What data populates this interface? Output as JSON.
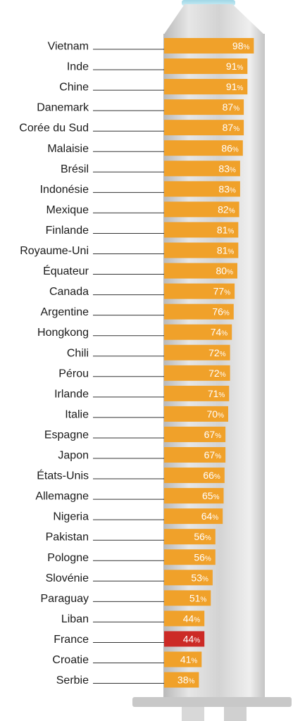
{
  "chart_data": {
    "type": "bar",
    "orientation": "horizontal",
    "categories": [
      "Vietnam",
      "Inde",
      "Chine",
      "Danemark",
      "Corée du Sud",
      "Malaisie",
      "Brésil",
      "Indonésie",
      "Mexique",
      "Finlande",
      "Royaume-Uni",
      "Équateur",
      "Canada",
      "Argentine",
      "Hongkong",
      "Chili",
      "Pérou",
      "Irlande",
      "Italie",
      "Espagne",
      "Japon",
      "États-Unis",
      "Allemagne",
      "Nigeria",
      "Pakistan",
      "Pologne",
      "Slovénie",
      "Paraguay",
      "Liban",
      "France",
      "Croatie",
      "Serbie"
    ],
    "values": [
      98,
      91,
      91,
      87,
      87,
      86,
      83,
      83,
      82,
      81,
      81,
      80,
      77,
      76,
      74,
      72,
      72,
      71,
      70,
      67,
      67,
      66,
      65,
      64,
      56,
      56,
      53,
      51,
      44,
      44,
      41,
      38
    ],
    "value_suffix": "%",
    "highlight_category": "France",
    "bar_color": "#f0a12a",
    "highlight_color": "#cc2a26",
    "highlight_label_color": "#cc2a26",
    "syringe_color": "#dcdcdc",
    "xlim": [
      0,
      100
    ]
  }
}
